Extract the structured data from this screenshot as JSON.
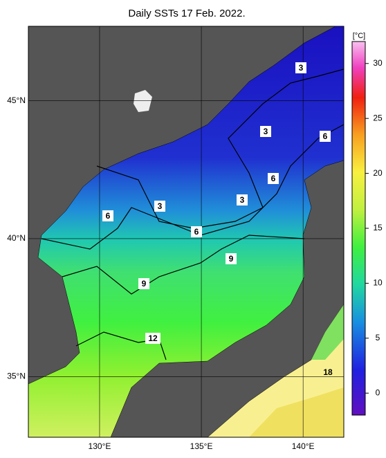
{
  "map": {
    "title": "Daily SSTs 17 Feb. 2022.",
    "xlim": [
      126.5,
      142
    ],
    "ylim": [
      32.8,
      47.7
    ],
    "xticks": [
      {
        "value": 130,
        "label": "130°E"
      },
      {
        "value": 135,
        "label": "135°E"
      },
      {
        "value": 140,
        "label": "140°E"
      }
    ],
    "yticks": [
      {
        "value": 35,
        "label": "35°N"
      },
      {
        "value": 40,
        "label": "40°N"
      },
      {
        "value": 45,
        "label": "45°N"
      }
    ],
    "contour_labels": [
      3,
      3,
      6,
      6,
      3,
      3,
      6,
      6,
      9,
      9,
      12,
      18
    ]
  },
  "colorbar": {
    "unit": "[°C]",
    "lim": [
      -2,
      32
    ],
    "ticks": [
      0,
      5,
      10,
      15,
      20,
      25,
      30
    ]
  }
}
